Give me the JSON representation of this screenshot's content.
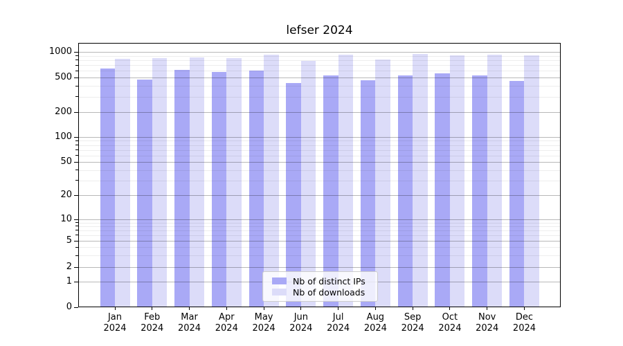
{
  "chart_data": {
    "type": "bar",
    "title": "lefser 2024",
    "categories": [
      "Jan",
      "Feb",
      "Mar",
      "Apr",
      "May",
      "Jun",
      "Jul",
      "Aug",
      "Sep",
      "Oct",
      "Nov",
      "Dec"
    ],
    "category_year": "2024",
    "series": [
      {
        "name": "Nb of distinct IPs",
        "color": "#a9a9f6",
        "values": [
          635,
          470,
          620,
          580,
          600,
          430,
          525,
          465,
          525,
          560,
          530,
          455
        ]
      },
      {
        "name": "Nb of downloads",
        "color": "#dcdcf9",
        "values": [
          830,
          845,
          855,
          850,
          925,
          780,
          920,
          815,
          950,
          910,
          925,
          910
        ]
      }
    ],
    "y_axis": {
      "scale": "symlog",
      "tick_labels": [
        "0",
        "1",
        "2",
        "5",
        "10",
        "20",
        "50",
        "100",
        "200",
        "500",
        "1000"
      ],
      "tick_values": [
        0,
        1,
        2,
        5,
        10,
        20,
        50,
        100,
        200,
        500,
        1000
      ],
      "minor_tick_values": [
        3,
        4,
        6,
        7,
        8,
        9,
        30,
        40,
        60,
        70,
        80,
        90,
        300,
        400,
        600,
        700,
        800,
        900
      ],
      "ylim": [
        0,
        1150
      ]
    },
    "x_axis": {
      "label_line2": "2024"
    },
    "legend_position": "lower-center",
    "grid": "major-and-minor",
    "background_color": "#ffffff"
  }
}
